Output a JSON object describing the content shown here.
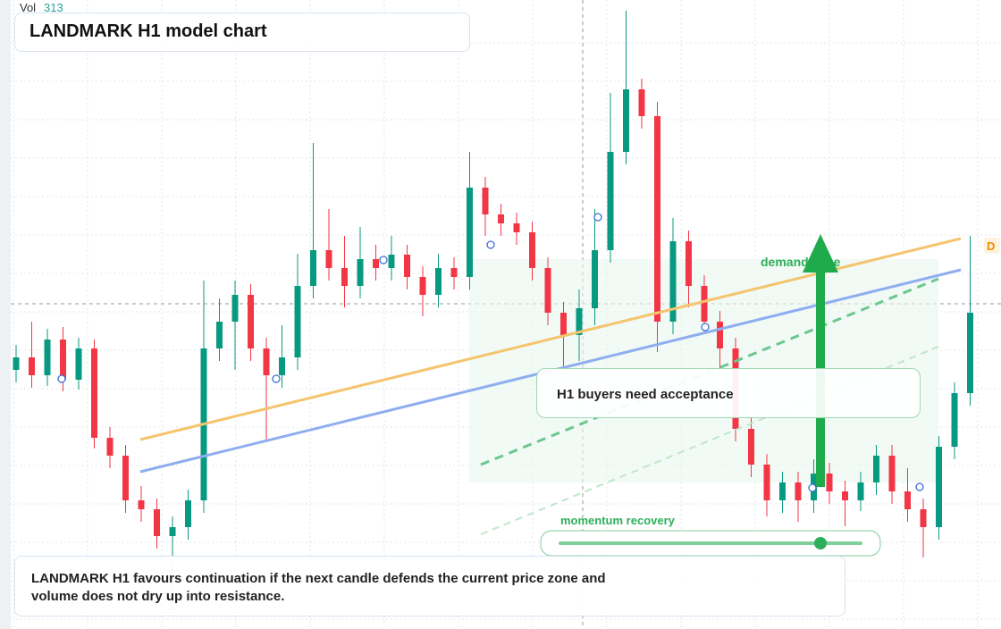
{
  "header": {
    "vol_label": "Vol",
    "vol_value": "313",
    "title": "LANDMARK H1 model chart"
  },
  "chart_data": {
    "type": "candlestick",
    "ylim": [
      0,
      704
    ],
    "up_color": "#089981",
    "down_color": "#f23645",
    "ohlc": [
      [
        290,
        318,
        276,
        304
      ],
      [
        304,
        344,
        270,
        284
      ],
      [
        284,
        336,
        272,
        324
      ],
      [
        324,
        338,
        266,
        279
      ],
      [
        279,
        326,
        268,
        314
      ],
      [
        314,
        324,
        202,
        214
      ],
      [
        214,
        226,
        180,
        194
      ],
      [
        194,
        206,
        130,
        144
      ],
      [
        144,
        160,
        120,
        134
      ],
      [
        134,
        146,
        90,
        104
      ],
      [
        104,
        126,
        20,
        114
      ],
      [
        114,
        156,
        100,
        144
      ],
      [
        144,
        390,
        130,
        314
      ],
      [
        314,
        370,
        300,
        344
      ],
      [
        344,
        390,
        290,
        374
      ],
      [
        374,
        386,
        300,
        314
      ],
      [
        314,
        326,
        210,
        284
      ],
      [
        284,
        340,
        270,
        304
      ],
      [
        304,
        420,
        290,
        384
      ],
      [
        384,
        544,
        370,
        424
      ],
      [
        424,
        470,
        390,
        404
      ],
      [
        404,
        440,
        360,
        384
      ],
      [
        384,
        450,
        370,
        414
      ],
      [
        414,
        430,
        390,
        404
      ],
      [
        404,
        440,
        390,
        419
      ],
      [
        419,
        430,
        380,
        394
      ],
      [
        394,
        406,
        350,
        374
      ],
      [
        374,
        420,
        360,
        404
      ],
      [
        404,
        416,
        380,
        394
      ],
      [
        394,
        534,
        380,
        494
      ],
      [
        494,
        506,
        440,
        464
      ],
      [
        464,
        476,
        440,
        454
      ],
      [
        454,
        466,
        430,
        444
      ],
      [
        444,
        456,
        390,
        404
      ],
      [
        404,
        416,
        340,
        354
      ],
      [
        354,
        366,
        290,
        329
      ],
      [
        329,
        380,
        300,
        359
      ],
      [
        359,
        470,
        340,
        424
      ],
      [
        424,
        600,
        410,
        534
      ],
      [
        534,
        692,
        520,
        604
      ],
      [
        604,
        616,
        560,
        574
      ],
      [
        574,
        590,
        310,
        344
      ],
      [
        344,
        460,
        330,
        434
      ],
      [
        434,
        446,
        360,
        384
      ],
      [
        384,
        396,
        330,
        344
      ],
      [
        344,
        356,
        290,
        314
      ],
      [
        314,
        326,
        210,
        224
      ],
      [
        224,
        236,
        170,
        184
      ],
      [
        184,
        196,
        126,
        144
      ],
      [
        144,
        176,
        130,
        164
      ],
      [
        164,
        176,
        120,
        144
      ],
      [
        144,
        190,
        130,
        174
      ],
      [
        174,
        186,
        140,
        154
      ],
      [
        154,
        166,
        115,
        144
      ],
      [
        144,
        176,
        132,
        164
      ],
      [
        164,
        206,
        150,
        194
      ],
      [
        194,
        206,
        140,
        154
      ],
      [
        154,
        180,
        120,
        134
      ],
      [
        134,
        146,
        80,
        114
      ],
      [
        114,
        216,
        100,
        204
      ],
      [
        204,
        276,
        190,
        264
      ],
      [
        264,
        440,
        250,
        354
      ]
    ]
  },
  "annotations": {
    "zone": "demand zone",
    "callout": "H1 buyers need acceptance",
    "slider": "momentum recovery",
    "badge": "D",
    "note": "LANDMARK H1 favours continuation if the next candle defends the current price zone and volume does not dry up into resistance."
  }
}
